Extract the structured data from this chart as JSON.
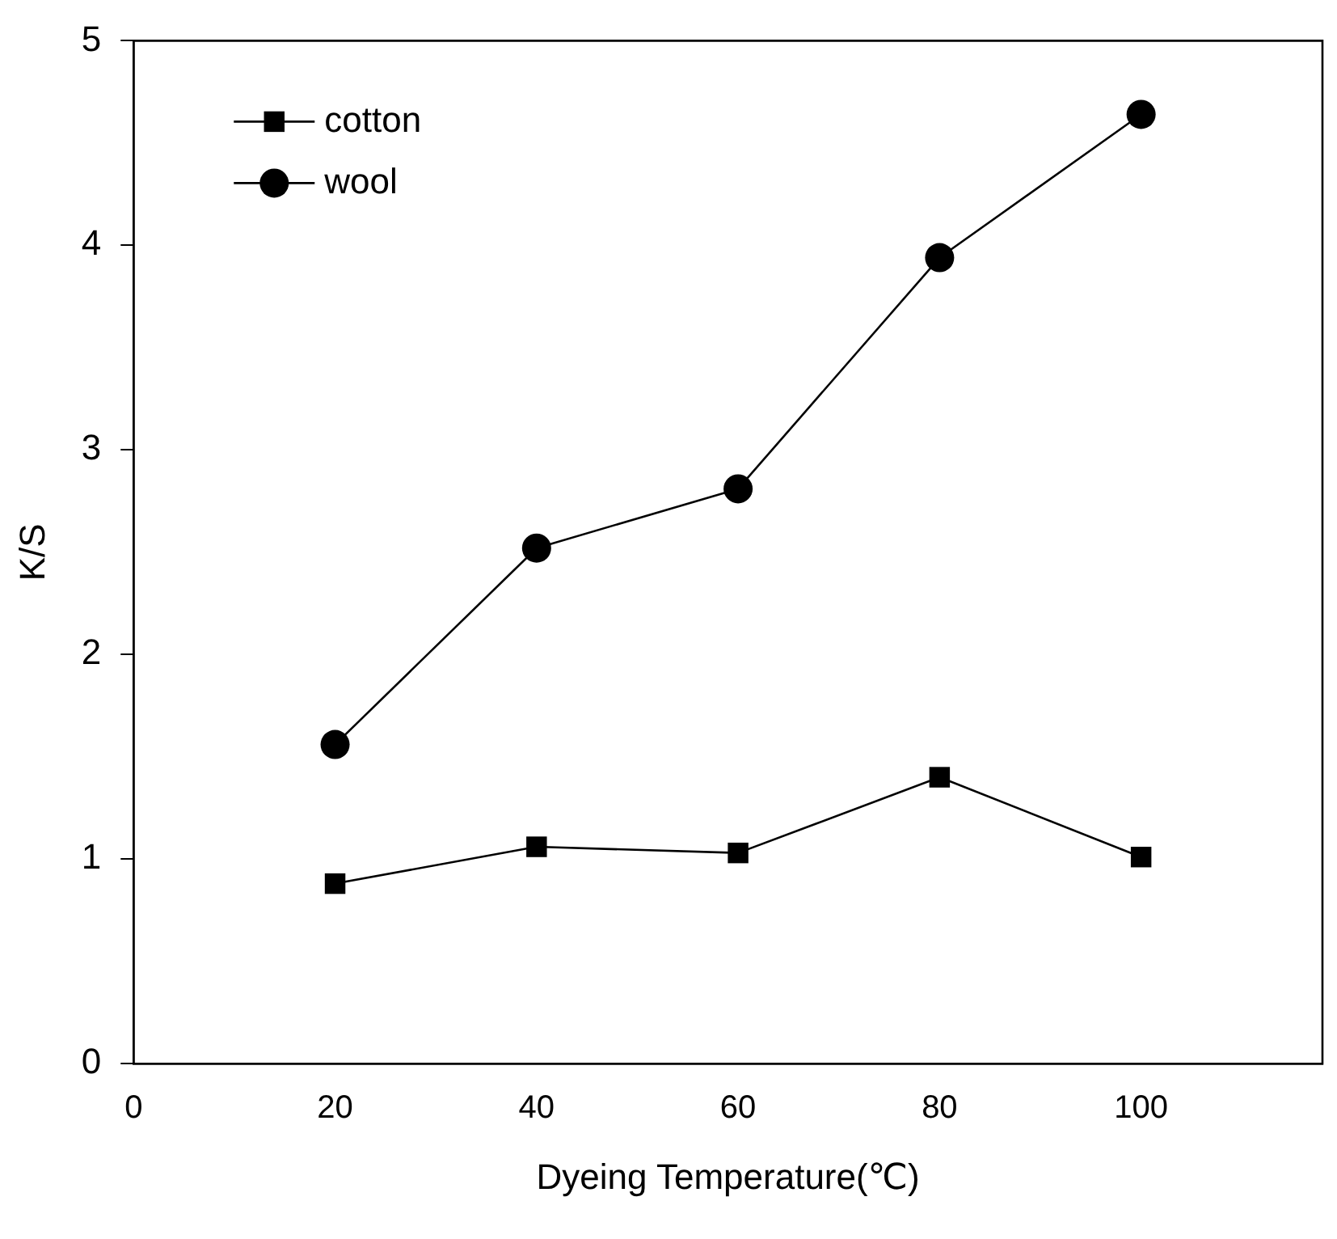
{
  "chart_data": {
    "type": "line",
    "xlabel": "Dyeing Temperature(℃)",
    "ylabel": "K/S",
    "x": [
      20,
      40,
      60,
      80,
      100
    ],
    "series": [
      {
        "name": "cotton",
        "color": "#000000",
        "marker": "square",
        "values": [
          0.88,
          1.06,
          1.03,
          1.4,
          1.01
        ]
      },
      {
        "name": "wool",
        "color": "#000000",
        "marker": "circle",
        "values": [
          1.56,
          2.52,
          2.81,
          3.94,
          4.64
        ]
      }
    ],
    "xlim": [
      0,
      118
    ],
    "xticks": [
      0,
      20,
      40,
      60,
      80,
      100
    ],
    "ylim": [
      0,
      5
    ],
    "yticks": [
      0,
      1,
      2,
      3,
      4,
      5
    ],
    "grid": false,
    "legend": "top left",
    "line_style": "solid"
  }
}
